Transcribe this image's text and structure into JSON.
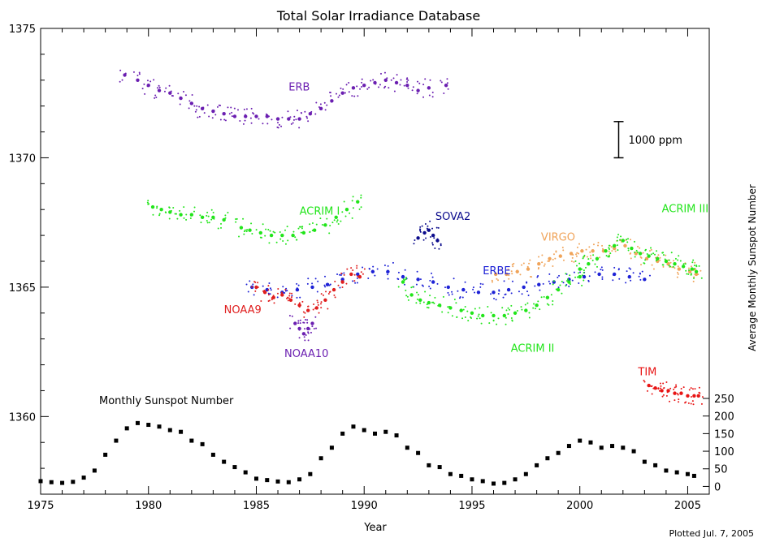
{
  "chart_data": {
    "type": "scatter",
    "title": "Total Solar Irradiance Database",
    "xlabel": "Year",
    "ylabel": "",
    "y2label": "Average Monthly Sunspot Number",
    "xlim": [
      1975,
      2006
    ],
    "ylim": [
      1357,
      1375
    ],
    "x_ticks": [
      1975,
      1980,
      1985,
      1990,
      1995,
      2000,
      2005
    ],
    "y_ticks": [
      1360,
      1365,
      1370,
      1375
    ],
    "y2_ticks": [
      0,
      50,
      100,
      150,
      200,
      250
    ],
    "y2_range_on_left_axis": {
      "zero_at": 1357.3,
      "top_value": 250,
      "top_at": 1360.7
    },
    "scale_bar": {
      "label": "1000 ppm",
      "x": 2001.8,
      "y_top": 1371.4,
      "y_bottom": 1370.0
    },
    "footer": "Plotted Jul. 7, 2005",
    "sunspot_label": "Monthly Sunspot Number",
    "series": [
      {
        "name": "ERB",
        "color": "#6b1fb1",
        "points": [
          [
            1978.9,
            1373.2
          ],
          [
            1979.5,
            1373.0
          ],
          [
            1980.0,
            1372.8
          ],
          [
            1980.5,
            1372.6
          ],
          [
            1981.0,
            1372.5
          ],
          [
            1981.5,
            1372.3
          ],
          [
            1982.0,
            1372.1
          ],
          [
            1982.5,
            1371.9
          ],
          [
            1983.0,
            1371.8
          ],
          [
            1983.5,
            1371.7
          ],
          [
            1984.0,
            1371.6
          ],
          [
            1984.5,
            1371.6
          ],
          [
            1985.0,
            1371.6
          ],
          [
            1985.5,
            1371.6
          ],
          [
            1986.0,
            1371.5
          ],
          [
            1986.5,
            1371.5
          ],
          [
            1987.0,
            1371.5
          ],
          [
            1987.5,
            1371.7
          ],
          [
            1988.0,
            1371.9
          ],
          [
            1988.5,
            1372.2
          ],
          [
            1989.0,
            1372.5
          ],
          [
            1989.5,
            1372.7
          ],
          [
            1990.0,
            1372.8
          ],
          [
            1990.5,
            1372.9
          ],
          [
            1991.0,
            1373.0
          ],
          [
            1991.5,
            1372.9
          ],
          [
            1992.0,
            1372.8
          ],
          [
            1992.5,
            1372.6
          ],
          [
            1993.0,
            1372.7
          ],
          [
            1993.8,
            1372.8
          ]
        ]
      },
      {
        "name": "ACRIM I",
        "color": "#22e51b",
        "points": [
          [
            1980.2,
            1368.1
          ],
          [
            1980.6,
            1368.0
          ],
          [
            1981.0,
            1367.9
          ],
          [
            1981.5,
            1367.8
          ],
          [
            1982.0,
            1367.8
          ],
          [
            1982.5,
            1367.7
          ],
          [
            1983.0,
            1367.7
          ],
          [
            1983.5,
            1367.6
          ],
          [
            1984.3,
            1367.3
          ],
          [
            1984.7,
            1367.2
          ],
          [
            1985.2,
            1367.1
          ],
          [
            1985.7,
            1367.0
          ],
          [
            1986.2,
            1367.0
          ],
          [
            1986.7,
            1367.0
          ],
          [
            1987.2,
            1367.1
          ],
          [
            1987.7,
            1367.2
          ],
          [
            1988.2,
            1367.4
          ],
          [
            1988.7,
            1367.7
          ],
          [
            1989.2,
            1368.0
          ],
          [
            1989.7,
            1368.3
          ]
        ]
      },
      {
        "name": "SOVA2",
        "color": "#0b0b8c",
        "points": [
          [
            1992.5,
            1366.9
          ],
          [
            1992.8,
            1367.1
          ],
          [
            1993.0,
            1367.2
          ],
          [
            1993.2,
            1367.0
          ],
          [
            1993.4,
            1366.8
          ]
        ]
      },
      {
        "name": "ERBE",
        "color": "#1e22d6",
        "points": [
          [
            1984.8,
            1365.0
          ],
          [
            1985.5,
            1364.9
          ],
          [
            1986.2,
            1364.8
          ],
          [
            1986.9,
            1364.9
          ],
          [
            1987.6,
            1365.0
          ],
          [
            1988.3,
            1365.1
          ],
          [
            1989.0,
            1365.3
          ],
          [
            1989.7,
            1365.5
          ],
          [
            1990.4,
            1365.6
          ],
          [
            1991.1,
            1365.6
          ],
          [
            1991.8,
            1365.4
          ],
          [
            1992.5,
            1365.3
          ],
          [
            1993.2,
            1365.2
          ],
          [
            1993.9,
            1365.0
          ],
          [
            1994.6,
            1364.9
          ],
          [
            1995.3,
            1364.8
          ],
          [
            1996.0,
            1364.8
          ],
          [
            1996.7,
            1364.9
          ],
          [
            1997.4,
            1365.0
          ],
          [
            1998.1,
            1365.1
          ],
          [
            1998.8,
            1365.2
          ],
          [
            1999.5,
            1365.3
          ],
          [
            2000.2,
            1365.4
          ],
          [
            2000.9,
            1365.5
          ],
          [
            2001.6,
            1365.5
          ],
          [
            2002.3,
            1365.4
          ],
          [
            2003.0,
            1365.3
          ]
        ]
      },
      {
        "name": "VIRGO",
        "color": "#f0a45a",
        "points": [
          [
            1996.1,
            1365.5
          ],
          [
            1996.6,
            1365.5
          ],
          [
            1997.1,
            1365.6
          ],
          [
            1997.6,
            1365.7
          ],
          [
            1998.1,
            1365.9
          ],
          [
            1998.6,
            1366.1
          ],
          [
            1999.1,
            1366.2
          ],
          [
            1999.6,
            1366.3
          ],
          [
            2000.1,
            1366.4
          ],
          [
            2000.6,
            1366.4
          ],
          [
            2001.1,
            1366.4
          ],
          [
            2001.6,
            1366.5
          ],
          [
            2002.1,
            1366.6
          ],
          [
            2002.6,
            1366.3
          ],
          [
            2003.1,
            1366.1
          ],
          [
            2003.6,
            1366.0
          ],
          [
            2004.1,
            1365.9
          ],
          [
            2004.6,
            1365.7
          ],
          [
            2005.1,
            1365.6
          ],
          [
            2005.4,
            1365.5
          ]
        ]
      },
      {
        "name": "NOAA9",
        "color": "#e01e1e",
        "points": [
          [
            1985.0,
            1365.0
          ],
          [
            1985.4,
            1364.8
          ],
          [
            1985.8,
            1364.6
          ],
          [
            1986.2,
            1364.7
          ],
          [
            1986.6,
            1364.5
          ],
          [
            1987.0,
            1364.3
          ],
          [
            1987.4,
            1364.1
          ],
          [
            1987.8,
            1364.2
          ],
          [
            1988.2,
            1364.5
          ],
          [
            1988.6,
            1364.9
          ],
          [
            1989.0,
            1365.2
          ],
          [
            1989.4,
            1365.5
          ],
          [
            1989.8,
            1365.4
          ]
        ]
      },
      {
        "name": "NOAA10",
        "color": "#6b1fb1",
        "points": [
          [
            1986.8,
            1363.6
          ],
          [
            1987.0,
            1363.4
          ],
          [
            1987.2,
            1363.2
          ],
          [
            1987.4,
            1363.4
          ],
          [
            1987.6,
            1363.6
          ]
        ]
      },
      {
        "name": "ACRIM II",
        "color": "#22e51b",
        "points": [
          [
            1991.8,
            1365.2
          ],
          [
            1992.2,
            1364.7
          ],
          [
            1992.6,
            1364.5
          ],
          [
            1993.0,
            1364.4
          ],
          [
            1993.5,
            1364.3
          ],
          [
            1994.0,
            1364.2
          ],
          [
            1994.5,
            1364.1
          ],
          [
            1995.0,
            1364.0
          ],
          [
            1995.5,
            1363.9
          ],
          [
            1996.0,
            1363.9
          ],
          [
            1996.5,
            1363.9
          ],
          [
            1997.0,
            1364.0
          ],
          [
            1997.5,
            1364.1
          ],
          [
            1998.0,
            1364.3
          ],
          [
            1998.5,
            1364.6
          ],
          [
            1999.0,
            1364.9
          ],
          [
            1999.5,
            1365.2
          ],
          [
            2000.0,
            1365.4
          ]
        ]
      },
      {
        "name": "ACRIM III",
        "color": "#22e51b",
        "points": [
          [
            2000.0,
            1365.7
          ],
          [
            2000.4,
            1365.9
          ],
          [
            2000.8,
            1366.1
          ],
          [
            2001.2,
            1366.4
          ],
          [
            2001.6,
            1366.6
          ],
          [
            2002.0,
            1366.8
          ],
          [
            2002.4,
            1366.5
          ],
          [
            2002.8,
            1366.3
          ],
          [
            2003.2,
            1366.2
          ],
          [
            2003.6,
            1366.1
          ],
          [
            2004.0,
            1366.0
          ],
          [
            2004.4,
            1365.9
          ],
          [
            2004.8,
            1365.8
          ],
          [
            2005.2,
            1365.7
          ],
          [
            2005.4,
            1365.6
          ]
        ]
      },
      {
        "name": "TIM",
        "color": "#e81515",
        "points": [
          [
            2003.2,
            1361.2
          ],
          [
            2003.5,
            1361.1
          ],
          [
            2003.8,
            1361.0
          ],
          [
            2004.1,
            1361.0
          ],
          [
            2004.4,
            1360.9
          ],
          [
            2004.7,
            1360.9
          ],
          [
            2005.0,
            1360.8
          ],
          [
            2005.3,
            1360.8
          ],
          [
            2005.5,
            1360.8
          ]
        ]
      },
      {
        "name": "Monthly Sunspot Number",
        "color": "#000000",
        "axis": "right",
        "points": [
          [
            1975.0,
            15
          ],
          [
            1975.5,
            12
          ],
          [
            1976.0,
            10
          ],
          [
            1976.5,
            13
          ],
          [
            1977.0,
            25
          ],
          [
            1977.5,
            45
          ],
          [
            1978.0,
            90
          ],
          [
            1978.5,
            130
          ],
          [
            1979.0,
            165
          ],
          [
            1979.5,
            180
          ],
          [
            1980.0,
            175
          ],
          [
            1980.5,
            170
          ],
          [
            1981.0,
            160
          ],
          [
            1981.5,
            155
          ],
          [
            1982.0,
            130
          ],
          [
            1982.5,
            120
          ],
          [
            1983.0,
            90
          ],
          [
            1983.5,
            70
          ],
          [
            1984.0,
            55
          ],
          [
            1984.5,
            40
          ],
          [
            1985.0,
            22
          ],
          [
            1985.5,
            18
          ],
          [
            1986.0,
            14
          ],
          [
            1986.5,
            12
          ],
          [
            1987.0,
            20
          ],
          [
            1987.5,
            35
          ],
          [
            1988.0,
            80
          ],
          [
            1988.5,
            110
          ],
          [
            1989.0,
            150
          ],
          [
            1989.5,
            170
          ],
          [
            1990.0,
            160
          ],
          [
            1990.5,
            150
          ],
          [
            1991.0,
            155
          ],
          [
            1991.5,
            145
          ],
          [
            1992.0,
            110
          ],
          [
            1992.5,
            95
          ],
          [
            1993.0,
            60
          ],
          [
            1993.5,
            55
          ],
          [
            1994.0,
            35
          ],
          [
            1994.5,
            30
          ],
          [
            1995.0,
            20
          ],
          [
            1995.5,
            15
          ],
          [
            1996.0,
            8
          ],
          [
            1996.5,
            10
          ],
          [
            1997.0,
            20
          ],
          [
            1997.5,
            35
          ],
          [
            1998.0,
            60
          ],
          [
            1998.5,
            80
          ],
          [
            1999.0,
            95
          ],
          [
            1999.5,
            115
          ],
          [
            2000.0,
            130
          ],
          [
            2000.5,
            125
          ],
          [
            2001.0,
            110
          ],
          [
            2001.5,
            115
          ],
          [
            2002.0,
            110
          ],
          [
            2002.5,
            100
          ],
          [
            2003.0,
            70
          ],
          [
            2003.5,
            60
          ],
          [
            2004.0,
            45
          ],
          [
            2004.5,
            40
          ],
          [
            2005.0,
            35
          ],
          [
            2005.3,
            30
          ]
        ]
      }
    ],
    "annotations": [
      {
        "text": "ERB",
        "x": 1986.5,
        "y": 1372.6,
        "color": "#6b1fb1"
      },
      {
        "text": "ACRIM I",
        "x": 1987.0,
        "y": 1367.8,
        "color": "#22e51b"
      },
      {
        "text": "SOVA2",
        "x": 1993.3,
        "y": 1367.6,
        "color": "#0b0b8c"
      },
      {
        "text": "ERBE",
        "x": 1995.5,
        "y": 1365.5,
        "color": "#1e22d6"
      },
      {
        "text": "VIRGO",
        "x": 1998.2,
        "y": 1366.8,
        "color": "#f0a45a"
      },
      {
        "text": "ACRIM III",
        "x": 2003.8,
        "y": 1367.9,
        "color": "#22e51b"
      },
      {
        "text": "NOAA9",
        "x": 1983.5,
        "y": 1364.0,
        "color": "#e01e1e"
      },
      {
        "text": "NOAA10",
        "x": 1986.3,
        "y": 1362.3,
        "color": "#6b1fb1"
      },
      {
        "text": "ACRIM II",
        "x": 1996.8,
        "y": 1362.5,
        "color": "#22e51b"
      },
      {
        "text": "TIM",
        "x": 2002.7,
        "y": 1361.6,
        "color": "#e81515"
      }
    ]
  }
}
